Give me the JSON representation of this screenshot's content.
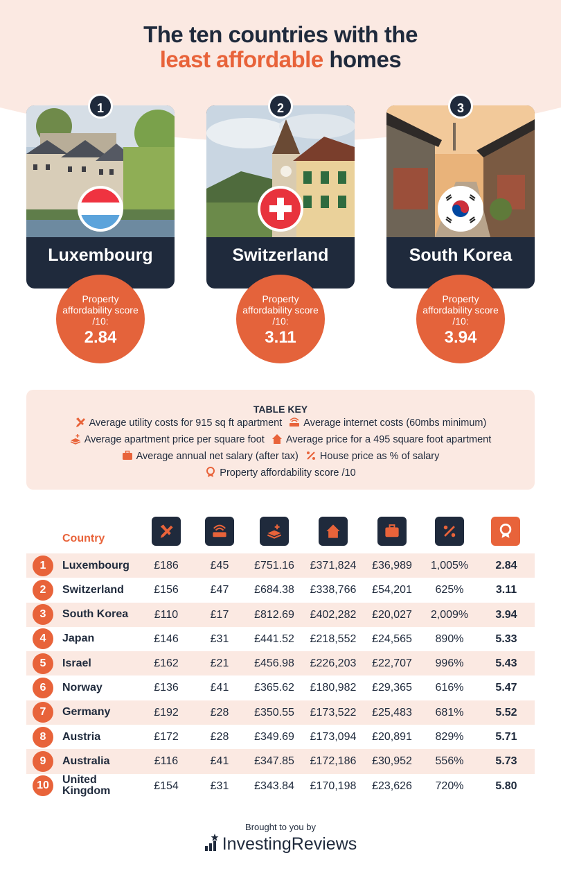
{
  "title": {
    "line1": "The ten countries with the",
    "accent": "least affordable",
    "rest": " homes"
  },
  "top3": [
    {
      "rank": "1",
      "name": "Luxembourg",
      "score_label": "Property affordability score /10:",
      "score": "2.84",
      "flag": "luxembourg-flag"
    },
    {
      "rank": "2",
      "name": "Switzerland",
      "score_label": "Property affordability score /10:",
      "score": "3.11",
      "flag": "switzerland-flag"
    },
    {
      "rank": "3",
      "name": "South Korea",
      "score_label": "Property affordability score /10:",
      "score": "3.94",
      "flag": "south-korea-flag"
    }
  ],
  "key": {
    "title": "TABLE KEY",
    "items": [
      {
        "icon": "tools-icon",
        "label": "Average utility costs for 915 sq ft apartment"
      },
      {
        "icon": "router-icon",
        "label": "Average internet costs (60mbs minimum)"
      },
      {
        "icon": "price-per-sqft-icon",
        "label": "Average apartment price per square foot"
      },
      {
        "icon": "house-icon",
        "label": "Average price for a 495 square foot apartment"
      },
      {
        "icon": "briefcase-icon",
        "label": "Average annual net salary (after tax)"
      },
      {
        "icon": "percent-icon",
        "label": "House price as % of salary"
      },
      {
        "icon": "award-icon",
        "label": "Property affordability score /10"
      }
    ]
  },
  "table": {
    "country_header": "Country",
    "rows": [
      {
        "rank": "1",
        "country": "Luxembourg",
        "utility": "£186",
        "internet": "£45",
        "sqft": "£751.16",
        "apt": "£371,824",
        "salary": "£36,989",
        "pct": "1,005%",
        "score": "2.84"
      },
      {
        "rank": "2",
        "country": "Switzerland",
        "utility": "£156",
        "internet": "£47",
        "sqft": "£684.38",
        "apt": "£338,766",
        "salary": "£54,201",
        "pct": "625%",
        "score": "3.11"
      },
      {
        "rank": "3",
        "country": "South Korea",
        "utility": "£110",
        "internet": "£17",
        "sqft": "£812.69",
        "apt": "£402,282",
        "salary": "£20,027",
        "pct": "2,009%",
        "score": "3.94"
      },
      {
        "rank": "4",
        "country": "Japan",
        "utility": "£146",
        "internet": "£31",
        "sqft": "£441.52",
        "apt": "£218,552",
        "salary": "£24,565",
        "pct": "890%",
        "score": "5.33"
      },
      {
        "rank": "5",
        "country": "Israel",
        "utility": "£162",
        "internet": "£21",
        "sqft": "£456.98",
        "apt": "£226,203",
        "salary": "£22,707",
        "pct": "996%",
        "score": "5.43"
      },
      {
        "rank": "6",
        "country": "Norway",
        "utility": "£136",
        "internet": "£41",
        "sqft": "£365.62",
        "apt": "£180,982",
        "salary": "£29,365",
        "pct": "616%",
        "score": "5.47"
      },
      {
        "rank": "7",
        "country": "Germany",
        "utility": "£192",
        "internet": "£28",
        "sqft": "£350.55",
        "apt": "£173,522",
        "salary": "£25,483",
        "pct": "681%",
        "score": "5.52"
      },
      {
        "rank": "8",
        "country": "Austria",
        "utility": "£172",
        "internet": "£28",
        "sqft": "£349.69",
        "apt": "£173,094",
        "salary": "£20,891",
        "pct": "829%",
        "score": "5.71"
      },
      {
        "rank": "9",
        "country": "Australia",
        "utility": "£116",
        "internet": "£41",
        "sqft": "£347.85",
        "apt": "£172,186",
        "salary": "£30,952",
        "pct": "556%",
        "score": "5.73"
      },
      {
        "rank": "10",
        "country": "United Kingdom",
        "utility": "£154",
        "internet": "£31",
        "sqft": "£343.84",
        "apt": "£170,198",
        "salary": "£23,626",
        "pct": "720%",
        "score": "5.80"
      }
    ]
  },
  "footer": {
    "by": "Brought to you by",
    "brand": "InvestingReviews"
  },
  "colors": {
    "navy": "#1f2a3c",
    "orange": "#e8633a",
    "peach": "#fbe9e2"
  }
}
